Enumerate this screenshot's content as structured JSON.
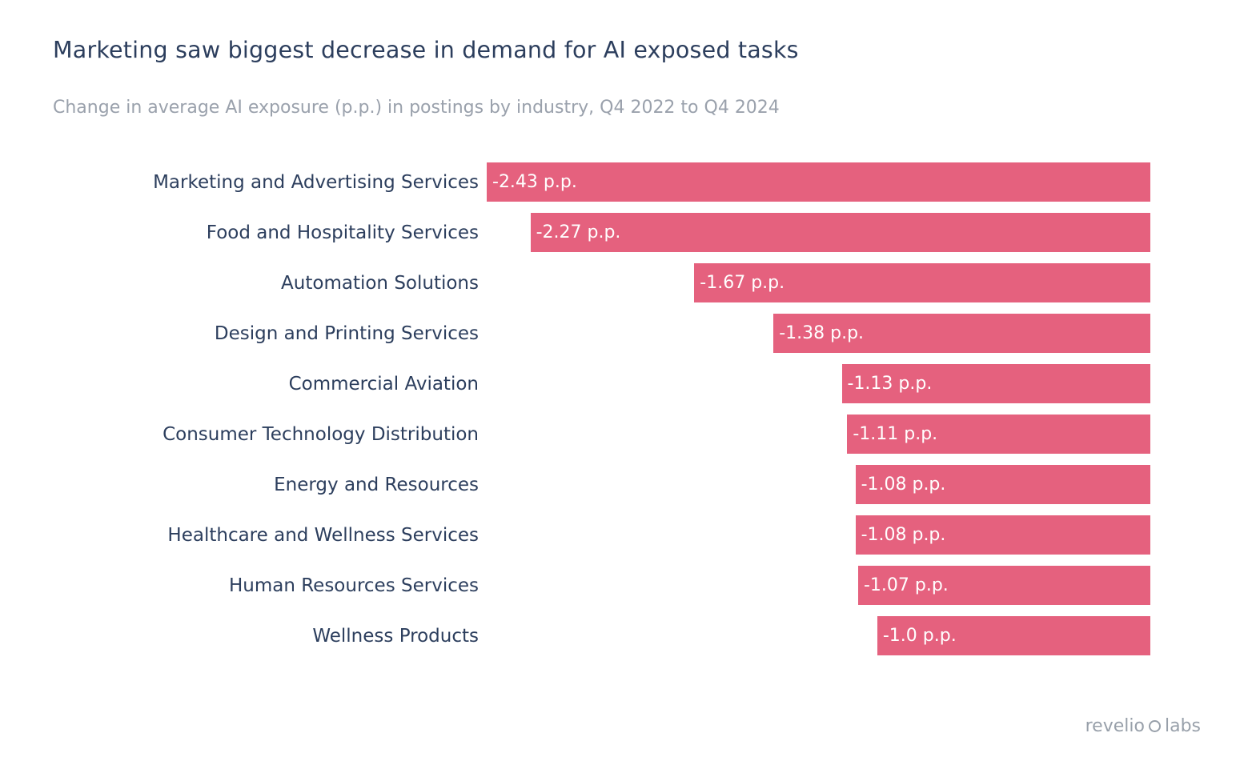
{
  "header": {
    "title": "Marketing saw biggest decrease in demand for AI exposed tasks",
    "subtitle": "Change in average AI exposure (p.p.) in postings by industry, Q4 2022 to Q4 2024"
  },
  "chart_data": {
    "type": "bar",
    "orientation": "horizontal",
    "title": "Marketing saw biggest decrease in demand for AI exposed tasks",
    "subtitle": "Change in average AI exposure (p.p.) in postings by industry, Q4 2022 to Q4 2024",
    "categories": [
      "Marketing and Advertising Services",
      "Food and Hospitality Services",
      "Automation Solutions",
      "Design and Printing Services",
      "Commercial Aviation",
      "Consumer Technology Distribution",
      "Energy and Resources",
      "Healthcare and Wellness Services",
      "Human Resources Services",
      "Wellness Products"
    ],
    "values": [
      -2.43,
      -2.27,
      -1.67,
      -1.38,
      -1.13,
      -1.11,
      -1.08,
      -1.08,
      -1.07,
      -1.0
    ],
    "value_labels": [
      "-2.43 p.p.",
      "-2.27 p.p.",
      "-1.67 p.p.",
      "-1.38 p.p.",
      "-1.13 p.p.",
      "-1.08 p.p.",
      "-1.08 p.p.",
      "-1.07 p.p.",
      "-1.0 p.p."
    ],
    "value_labels_full": [
      "-2.43 p.p.",
      "-2.27 p.p.",
      "-1.67 p.p.",
      "-1.38 p.p.",
      "-1.13 p.p.",
      "-1.11 p.p.",
      "-1.08 p.p.",
      "-1.08 p.p.",
      "-1.07 p.p.",
      "-1.0 p.p."
    ],
    "xlim": [
      -2.43,
      0
    ],
    "zero_axis": "right",
    "grid": false,
    "legend": false,
    "bar_color": "#e5617e",
    "value_label_color": "#ffffff",
    "category_label_color": "#2c3e5d"
  },
  "branding": {
    "logo_left": "revelio",
    "logo_right": "labs"
  }
}
